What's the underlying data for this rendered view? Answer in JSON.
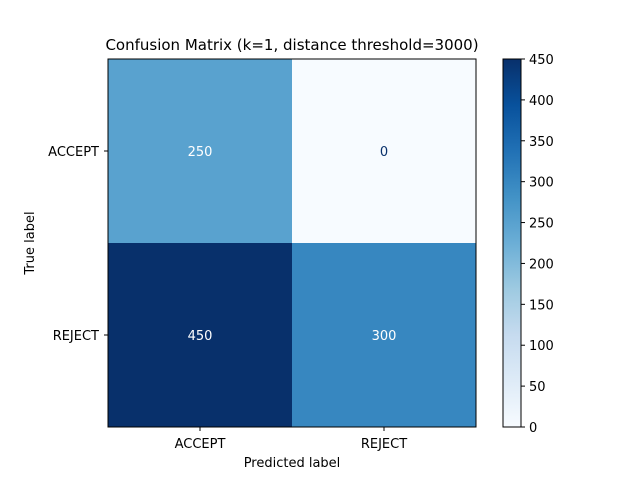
{
  "chart_data": {
    "type": "heatmap",
    "title": "Confusion Matrix (k=1, distance threshold=3000)",
    "xlabel": "Predicted label",
    "ylabel": "True label",
    "row_labels": [
      "ACCEPT",
      "REJECT"
    ],
    "col_labels": [
      "ACCEPT",
      "REJECT"
    ],
    "values": [
      [
        250,
        0
      ],
      [
        450,
        300
      ]
    ],
    "cell_text": [
      [
        "250",
        "0"
      ],
      [
        "450",
        "300"
      ]
    ],
    "colormap": "Blues",
    "colorbar": {
      "range": [
        0,
        450
      ],
      "ticks": [
        0,
        50,
        100,
        150,
        200,
        250,
        300,
        350,
        400,
        450
      ],
      "tick_labels": [
        "0",
        "50",
        "100",
        "150",
        "200",
        "250",
        "300",
        "350",
        "400",
        "450"
      ]
    },
    "text_colors": {
      "on_dark": "#ffffff",
      "on_light": "#08306b"
    },
    "grid": false
  }
}
